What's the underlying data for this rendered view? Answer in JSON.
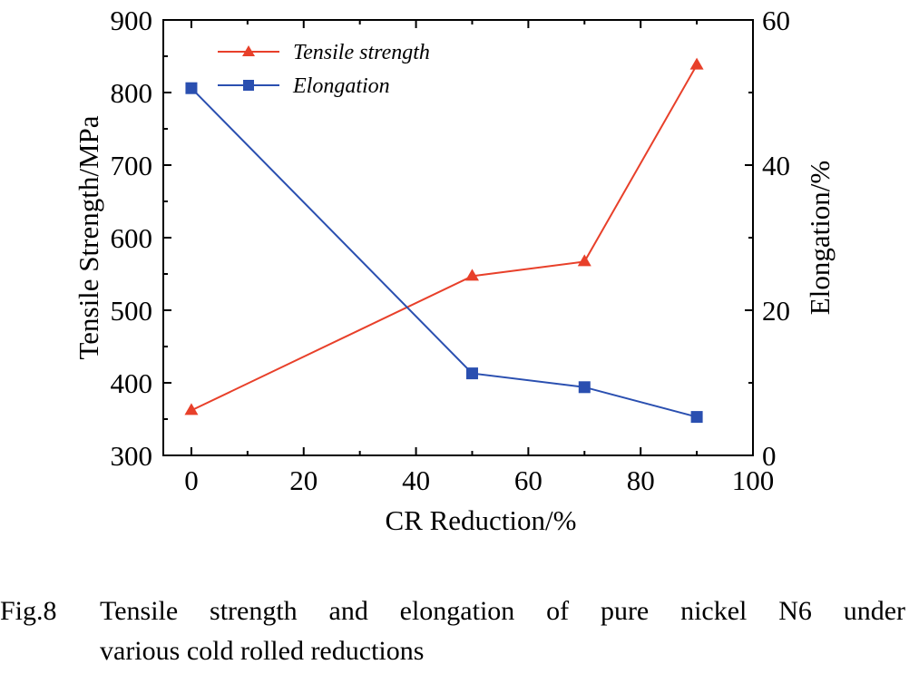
{
  "chart_data": {
    "type": "line",
    "xlabel": "CR Reduction/%",
    "ylabel_left": "Tensile Strength/MPa",
    "ylabel_right": "Elongation/%",
    "xlim": [
      -5,
      100
    ],
    "ylim_left": [
      300,
      900
    ],
    "ylim_right": [
      0,
      60
    ],
    "x_ticks": [
      0,
      20,
      40,
      60,
      80,
      100
    ],
    "y_ticks_left": [
      300,
      400,
      500,
      600,
      700,
      800,
      900
    ],
    "y_ticks_right": [
      0,
      20,
      40,
      60
    ],
    "grid": false,
    "legend_position": "top-left",
    "series": [
      {
        "name": "Tensile strength",
        "axis": "left",
        "marker": "triangle",
        "color": "#e8402a",
        "x": [
          0,
          50,
          70,
          90
        ],
        "y": [
          362,
          547,
          567,
          838
        ]
      },
      {
        "name": "Elongation",
        "axis": "right",
        "marker": "square",
        "color": "#2a4fb0",
        "x": [
          0,
          50,
          70,
          90
        ],
        "y": [
          50.6,
          11.3,
          9.4,
          5.3
        ]
      }
    ]
  },
  "caption": {
    "label": "Fig.8",
    "line1": "Tensile strength and elongation of pure nickel N6 under",
    "line2": "various cold rolled reductions"
  }
}
